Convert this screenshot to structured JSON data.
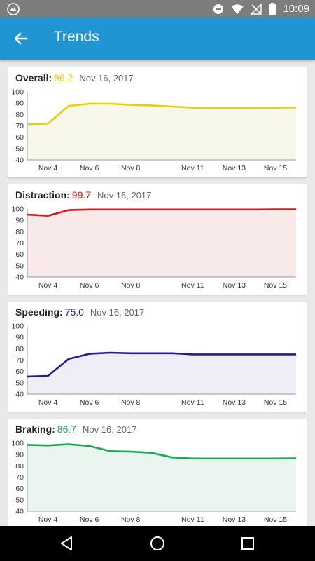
{
  "status_bar": {
    "time": "10:09"
  },
  "app_bar": {
    "title": "Trends"
  },
  "colors": {
    "status_bar": "#7d7d7d",
    "app_bar": "#1f95d3",
    "overall": "#e2cf12",
    "distraction": "#dd1515",
    "speeding": "#2a1a8a",
    "braking": "#18a957"
  },
  "cards": [
    {
      "label": "Overall:",
      "value": "86.2",
      "date": "Nov 16, 2017"
    },
    {
      "label": "Distraction:",
      "value": "99.7",
      "date": "Nov 16, 2017"
    },
    {
      "label": "Speeding:",
      "value": "75.0",
      "date": "Nov 16, 2017"
    },
    {
      "label": "Braking:",
      "value": "86.7",
      "date": "Nov 16, 2017"
    }
  ],
  "chart_data": [
    {
      "type": "area",
      "title": "Overall",
      "x": [
        "Nov 3",
        "Nov 4",
        "Nov 5",
        "Nov 6",
        "Nov 7",
        "Nov 8",
        "Nov 9",
        "Nov 10",
        "Nov 11",
        "Nov 12",
        "Nov 13",
        "Nov 14",
        "Nov 15",
        "Nov 16"
      ],
      "values": [
        71.5,
        72,
        87.5,
        89.5,
        89.5,
        88.5,
        88,
        87,
        86,
        86,
        86,
        86,
        86,
        86.2
      ],
      "xticks": [
        "Nov 4",
        "Nov 6",
        "Nov 8",
        "Nov 11",
        "Nov 13",
        "Nov 15"
      ],
      "yticks": [
        "100",
        "90",
        "80",
        "70",
        "60",
        "50",
        "40"
      ],
      "ylim": [
        40,
        100
      ],
      "color": "#e2cf12",
      "fill": "#f8f8ea"
    },
    {
      "type": "area",
      "title": "Distraction",
      "x": [
        "Nov 3",
        "Nov 4",
        "Nov 5",
        "Nov 6",
        "Nov 7",
        "Nov 8",
        "Nov 9",
        "Nov 10",
        "Nov 11",
        "Nov 12",
        "Nov 13",
        "Nov 14",
        "Nov 15",
        "Nov 16"
      ],
      "values": [
        95,
        94,
        99,
        99.5,
        99.5,
        99.5,
        99.5,
        99.5,
        99.5,
        99.5,
        99.5,
        99.5,
        99.6,
        99.7
      ],
      "xticks": [
        "Nov 4",
        "Nov 6",
        "Nov 8",
        "Nov 11",
        "Nov 13",
        "Nov 15"
      ],
      "yticks": [
        "100",
        "90",
        "80",
        "70",
        "60",
        "50",
        "40"
      ],
      "ylim": [
        40,
        100
      ],
      "color": "#dd1515",
      "fill": "#f9eaea"
    },
    {
      "type": "area",
      "title": "Speeding",
      "x": [
        "Nov 3",
        "Nov 4",
        "Nov 5",
        "Nov 6",
        "Nov 7",
        "Nov 8",
        "Nov 9",
        "Nov 10",
        "Nov 11",
        "Nov 12",
        "Nov 13",
        "Nov 14",
        "Nov 15",
        "Nov 16"
      ],
      "values": [
        55.5,
        56,
        71,
        75.5,
        76.5,
        76,
        76,
        76,
        75,
        75,
        75,
        75,
        75,
        75
      ],
      "xticks": [
        "Nov 4",
        "Nov 6",
        "Nov 8",
        "Nov 11",
        "Nov 13",
        "Nov 15"
      ],
      "yticks": [
        "100",
        "90",
        "80",
        "70",
        "60",
        "50",
        "40"
      ],
      "ylim": [
        40,
        100
      ],
      "color": "#2a1a8a",
      "fill": "#efeef6"
    },
    {
      "type": "area",
      "title": "Braking",
      "x": [
        "Nov 3",
        "Nov 4",
        "Nov 5",
        "Nov 6",
        "Nov 7",
        "Nov 8",
        "Nov 9",
        "Nov 10",
        "Nov 11",
        "Nov 12",
        "Nov 13",
        "Nov 14",
        "Nov 15",
        "Nov 16"
      ],
      "values": [
        98.5,
        98,
        99,
        97.5,
        93,
        92.5,
        91.5,
        87.5,
        86.5,
        86.5,
        86.5,
        86.5,
        86.5,
        86.7
      ],
      "xticks": [
        "Nov 4",
        "Nov 6",
        "Nov 8",
        "Nov 11",
        "Nov 13",
        "Nov 15"
      ],
      "yticks": [
        "100",
        "90",
        "80",
        "70",
        "60",
        "50",
        "40"
      ],
      "ylim": [
        40,
        100
      ],
      "color": "#18a957",
      "fill": "#eaf5ef"
    }
  ]
}
